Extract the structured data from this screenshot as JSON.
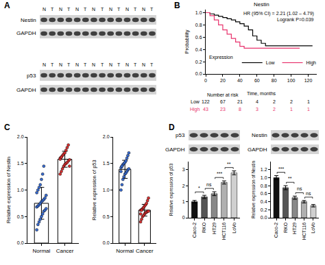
{
  "panel_labels": [
    "A",
    "B",
    "C",
    "D"
  ],
  "blots": [
    {
      "lanes": [
        "N",
        "T",
        "N",
        "T",
        "N",
        "T",
        "N",
        "T",
        "N",
        "T",
        "N",
        "T",
        "N",
        "T"
      ],
      "rows": [
        "Nestin",
        "GAPDH"
      ]
    },
    {
      "lanes": [
        "N",
        "T",
        "N",
        "T",
        "N",
        "T",
        "N",
        "T",
        "N",
        "T",
        "N",
        "T",
        "N",
        "T"
      ],
      "rows": [
        "p53",
        "GAPDH"
      ]
    },
    {
      "rows": [
        "p53",
        "GAPDH"
      ]
    },
    {
      "rows": [
        "Nestin",
        "GAPDH"
      ]
    }
  ],
  "chart_data": [
    {
      "type": "line",
      "title": "Nestin",
      "x_label": "Time, months",
      "y_label": "Probability",
      "xlim": [
        0,
        130
      ],
      "xticks": [
        0,
        20,
        40,
        60,
        80,
        100,
        120
      ],
      "ylim": [
        0,
        1.05
      ],
      "yticks": [
        {
          "value": 0,
          "label": "0.0"
        },
        0.2,
        0.4,
        0.6,
        0.8,
        {
          "value": 1,
          "label": "1.0"
        }
      ],
      "grid": false,
      "line_style": "step",
      "legend": "lower left",
      "legend_title": "Expression",
      "series": [
        {
          "name": "Low",
          "color": "#000000",
          "x": [
            0,
            5,
            10,
            15,
            20,
            25,
            30,
            35,
            40,
            45,
            50,
            55,
            60,
            65,
            70,
            90,
            110,
            125
          ],
          "values": [
            1,
            0.98,
            0.96,
            0.94,
            0.92,
            0.9,
            0.88,
            0.85,
            0.82,
            0.78,
            0.72,
            0.62,
            0.55,
            0.5,
            0.46,
            0.46,
            0.46,
            0.46
          ]
        },
        {
          "name": "High",
          "color": "#e8336d",
          "x": [
            0,
            5,
            10,
            15,
            20,
            25,
            30,
            35,
            40,
            45,
            60,
            80,
            110
          ],
          "values": [
            1,
            0.95,
            0.88,
            0.8,
            0.72,
            0.65,
            0.58,
            0.52,
            0.45,
            0.42,
            0.42,
            0.42,
            0.42
          ]
        }
      ],
      "annotations": [
        "HR (95% CI) = 2.21 (1.02 – 4.79)",
        "Logrank P=0.039"
      ],
      "risk_table": {
        "title": "Number at risk",
        "times": [
          0,
          20,
          40,
          60,
          80,
          100,
          120
        ],
        "rows": [
          {
            "name": "Low",
            "color": "#000000",
            "counts": [
              122,
              67,
              21,
              4,
              2,
              2,
              1
            ]
          },
          {
            "name": "High",
            "color": "#e8336d",
            "counts": [
              43,
              23,
              8,
              3,
              2,
              1,
              1
            ]
          }
        ]
      }
    },
    {
      "type": "dotbar",
      "y_label": "Relative expression of Nestin",
      "categories": [
        "Normal",
        "Cancer"
      ],
      "colors": [
        "#3a6fd8",
        "#e03030"
      ],
      "grid": false,
      "ylim": [
        0,
        2
      ],
      "yticks": [
        {
          "value": 0,
          "label": "0.0"
        },
        0.5,
        {
          "value": 1,
          "label": "1.0"
        },
        1.5,
        {
          "value": 2,
          "label": "2.0"
        }
      ],
      "points": [
        [
          0.25,
          0.35,
          0.4,
          0.45,
          0.5,
          0.55,
          0.6,
          0.62,
          0.65,
          0.68,
          0.7,
          0.72,
          0.75,
          0.78,
          0.8,
          0.82,
          0.85,
          0.9,
          0.95,
          1.0,
          1.05,
          1.1,
          1.2,
          1.3,
          1.45
        ],
        [
          1.3,
          1.35,
          1.4,
          1.45,
          1.48,
          1.5,
          1.52,
          1.55,
          1.57,
          1.6,
          1.62,
          1.65,
          1.68,
          1.7,
          1.75,
          1.8,
          1.85,
          1.45,
          1.58,
          1.62
        ]
      ],
      "means": [
        0.75,
        1.58
      ],
      "errors": [
        0.3,
        0.15
      ]
    },
    {
      "type": "dotbar",
      "y_label": "Relative expression of p53",
      "categories": [
        "Normal",
        "Cancer"
      ],
      "colors": [
        "#3a6fd8",
        "#e03030"
      ],
      "grid": false,
      "ylim": [
        0,
        2
      ],
      "yticks": [
        {
          "value": 0,
          "label": "0.0"
        },
        0.5,
        {
          "value": 1,
          "label": "1.0"
        },
        1.5,
        {
          "value": 2,
          "label": "2.0"
        }
      ],
      "points": [
        [
          1.0,
          1.1,
          1.2,
          1.25,
          1.3,
          1.32,
          1.35,
          1.38,
          1.4,
          1.42,
          1.45,
          1.48,
          1.5,
          1.52,
          1.55,
          1.6,
          1.65,
          1.7,
          1.35,
          1.45
        ],
        [
          0.4,
          0.45,
          0.5,
          0.52,
          0.55,
          0.57,
          0.58,
          0.6,
          0.6,
          0.62,
          0.63,
          0.65,
          0.67,
          0.7,
          0.72,
          0.75,
          0.8,
          0.85,
          0.55,
          0.62
        ]
      ],
      "means": [
        1.39,
        0.62
      ],
      "errors": [
        0.17,
        0.11
      ]
    },
    {
      "type": "bar",
      "y_label": "Relative expression of p53",
      "grid": false,
      "categories": [
        "Caco-2",
        "RKO",
        "HT29",
        "HCT116",
        "LoVo"
      ],
      "values": [
        1.0,
        1.3,
        1.5,
        2.2,
        2.8
      ],
      "errors": [
        0.08,
        0.1,
        0.12,
        0.1,
        0.12
      ],
      "colors": [
        "#111111",
        "#555555",
        "#888888",
        "#b0b0b0",
        "#d0d0d0"
      ],
      "ylim": [
        0,
        3.5
      ],
      "yticks": [
        0,
        1,
        2,
        3
      ],
      "comparisons": [
        {
          "pair": [
            "Caco-2",
            "RKO"
          ],
          "label": "*"
        },
        {
          "pair": [
            "RKO",
            "HT29"
          ],
          "label": "ns"
        },
        {
          "pair": [
            "HT29",
            "HCT116"
          ],
          "label": "***"
        },
        {
          "pair": [
            "HCT116",
            "LoVo"
          ],
          "label": "**"
        }
      ]
    },
    {
      "type": "bar",
      "y_label": "Relative expression of Nestin",
      "grid": false,
      "categories": [
        "Caco-2",
        "RKO",
        "HT29",
        "HCT116",
        "LoVo"
      ],
      "values": [
        1.0,
        0.75,
        0.5,
        0.4,
        0.3
      ],
      "errors": [
        0.05,
        0.05,
        0.04,
        0.03,
        0.03
      ],
      "colors": [
        "#111111",
        "#555555",
        "#888888",
        "#b0b0b0",
        "#d0d0d0"
      ],
      "ylim": [
        0,
        1.4
      ],
      "yticks": [
        {
          "value": 0,
          "label": "0.0"
        },
        0.2,
        0.4,
        0.6,
        0.8,
        {
          "value": 1,
          "label": "1.0"
        },
        1.2
      ],
      "comparisons": [
        {
          "pair": [
            "Caco-2",
            "RKO"
          ],
          "label": "***"
        },
        {
          "pair": [
            "RKO",
            "HT29"
          ],
          "label": "**"
        },
        {
          "pair": [
            "HT29",
            "HCT116"
          ],
          "label": "ns"
        },
        {
          "pair": [
            "HCT116",
            "LoVo"
          ],
          "label": "ns"
        }
      ]
    }
  ]
}
